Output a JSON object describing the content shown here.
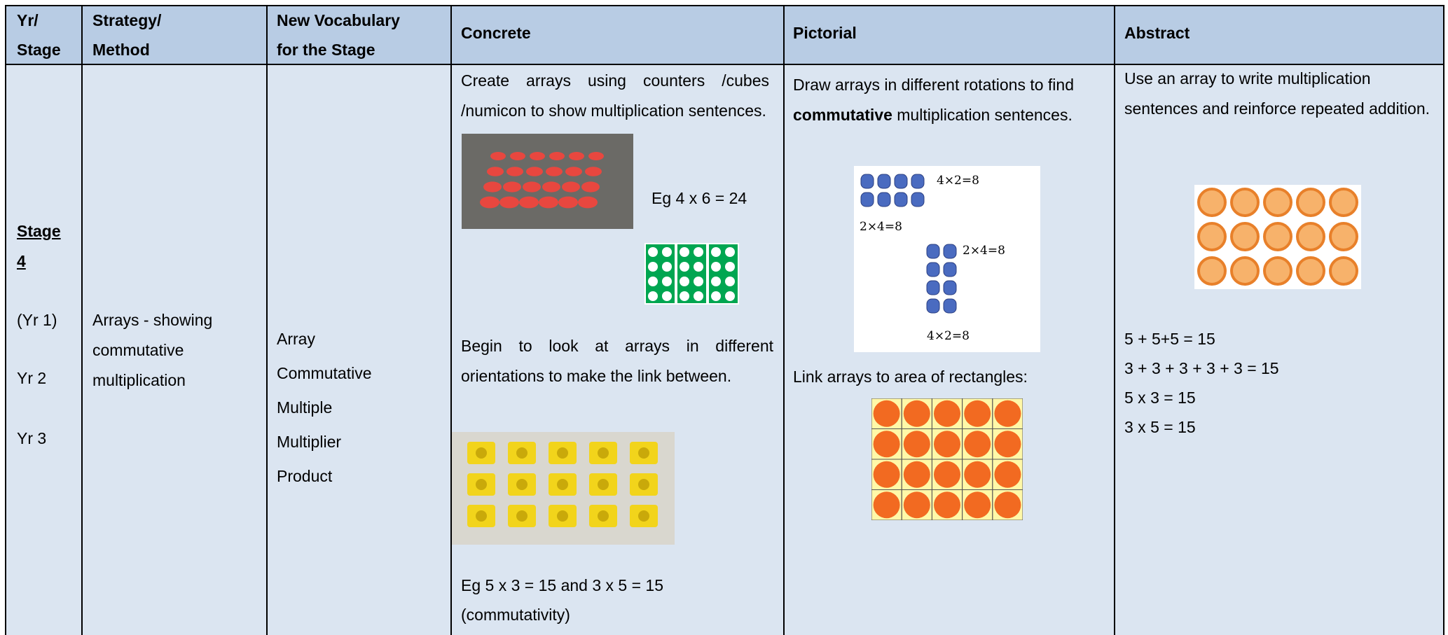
{
  "header": [
    [
      "Yr/",
      "Stage"
    ],
    [
      "Strategy/",
      "Method"
    ],
    [
      "New Vocabulary",
      "for the Stage"
    ],
    [
      "Concrete"
    ],
    [
      "Pictorial"
    ],
    [
      "Abstract"
    ]
  ],
  "row": {
    "stage": {
      "title": "Stage 4",
      "years": [
        "(Yr 1)",
        "Yr 2",
        "Yr 3"
      ]
    },
    "strategy": "Arrays - showing commutative multiplication",
    "vocabulary": [
      "Array",
      "Commutative",
      "Multiple",
      "Multiplier",
      "Product"
    ],
    "concrete": {
      "intro": "Create arrays using counters /cubes /numicon to show multiplication sentences.",
      "example": "Eg 4 x 6 = 24",
      "orientation": "Begin to look at arrays in different orientations to make the link between.",
      "example2": "Eg 5 x 3 = 15 and 3 x 5 = 15",
      "note": "(commutativity)"
    },
    "pictorial": {
      "intro_before": "Draw arrays in different rotations to find",
      "intro_bold": "commutative",
      "intro_after": "multiplication sentences.",
      "figure_labels": [
        "4×2=8",
        "2×4=8",
        "2×4=8",
        "4×2=8"
      ],
      "area": "Link arrays to area of rectangles:"
    },
    "abstract": {
      "intro": "Use an array to write multiplication sentences and reinforce repeated addition.",
      "sentences": [
        "5 + 5+5 = 15",
        "3 + 3 + 3 + 3 + 3 = 15",
        "5 x 3 = 15",
        "3 x 5 = 15"
      ]
    }
  }
}
